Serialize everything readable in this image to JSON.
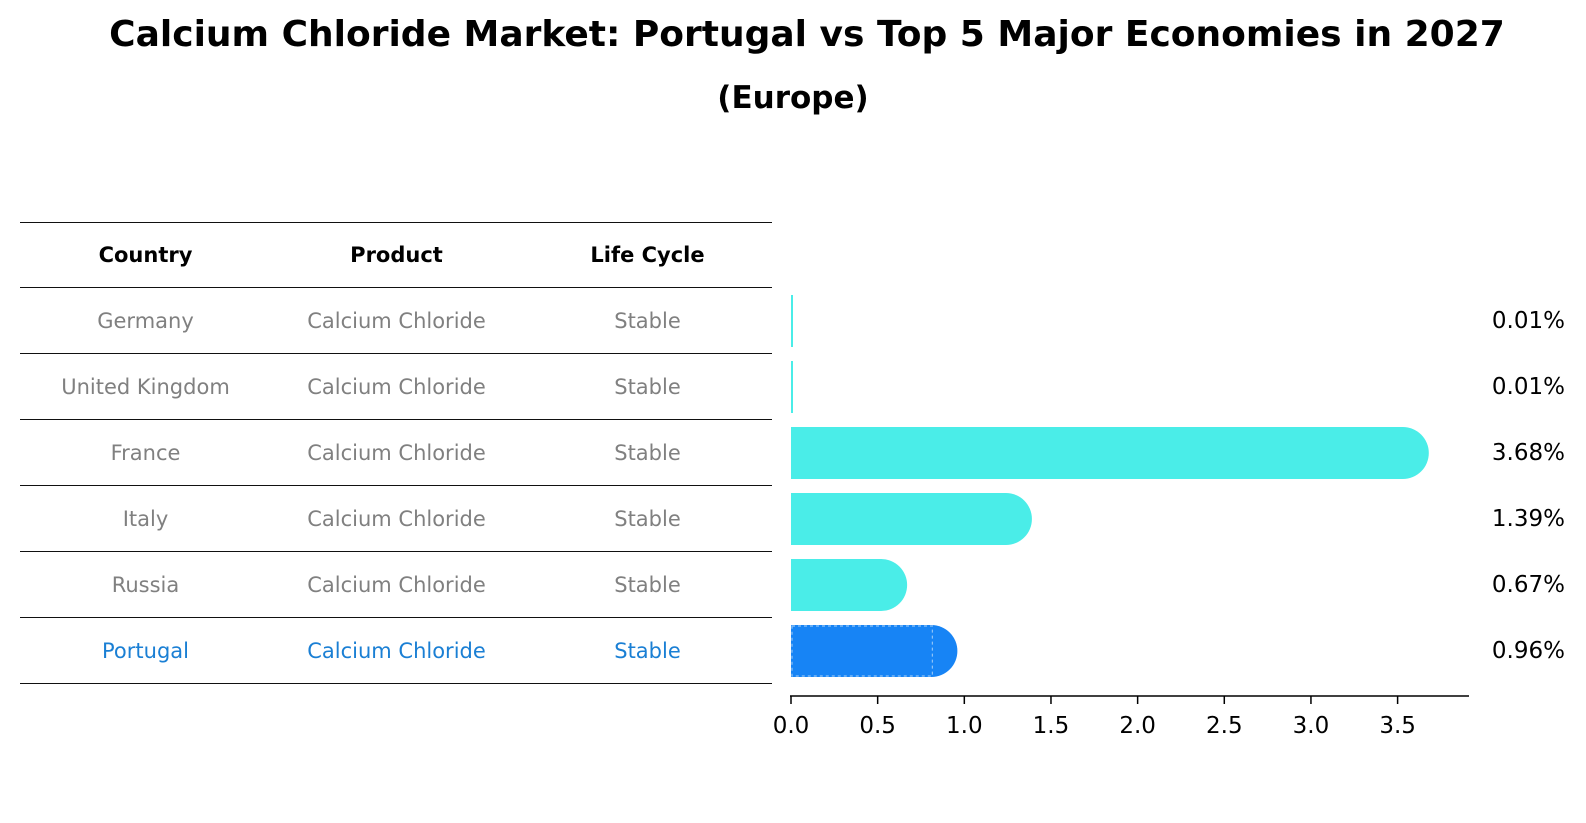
{
  "title": "Calcium Chloride Market: Portugal vs Top 5 Major Economies in 2027",
  "subtitle": "(Europe)",
  "table": {
    "headers": [
      "Country",
      "Product",
      "Life Cycle"
    ],
    "rows": [
      [
        "Germany",
        "Calcium Chloride",
        "Stable"
      ],
      [
        "United Kingdom",
        "Calcium Chloride",
        "Stable"
      ],
      [
        "France",
        "Calcium Chloride",
        "Stable"
      ],
      [
        "Italy",
        "Calcium Chloride",
        "Stable"
      ],
      [
        "Russia",
        "Calcium Chloride",
        "Stable"
      ],
      [
        "Portugal",
        "Calcium Chloride",
        "Stable"
      ]
    ],
    "highlight_row": 5
  },
  "colors": {
    "bar": "#4aede8",
    "highlight_bar": "#1784f5",
    "highlight_text": "#1a7fd4",
    "muted_text": "#808080"
  },
  "chart_data": {
    "type": "bar",
    "orientation": "horizontal",
    "categories": [
      "Germany",
      "United Kingdom",
      "France",
      "Italy",
      "Russia",
      "Portugal"
    ],
    "values": [
      0.01,
      0.01,
      3.68,
      1.39,
      0.67,
      0.96
    ],
    "value_labels": [
      "0.01%",
      "0.01%",
      "3.68%",
      "1.39%",
      "0.67%",
      "0.96%"
    ],
    "highlight": "Portugal",
    "xlim": [
      0,
      3.86
    ],
    "xticks": [
      0.0,
      0.5,
      1.0,
      1.5,
      2.0,
      2.5,
      3.0,
      3.5
    ],
    "xtick_labels": [
      "0.0",
      "0.5",
      "1.0",
      "1.5",
      "2.0",
      "2.5",
      "3.0",
      "3.5"
    ],
    "xlabel": "",
    "ylabel": "",
    "grid": false,
    "legend": "none"
  }
}
